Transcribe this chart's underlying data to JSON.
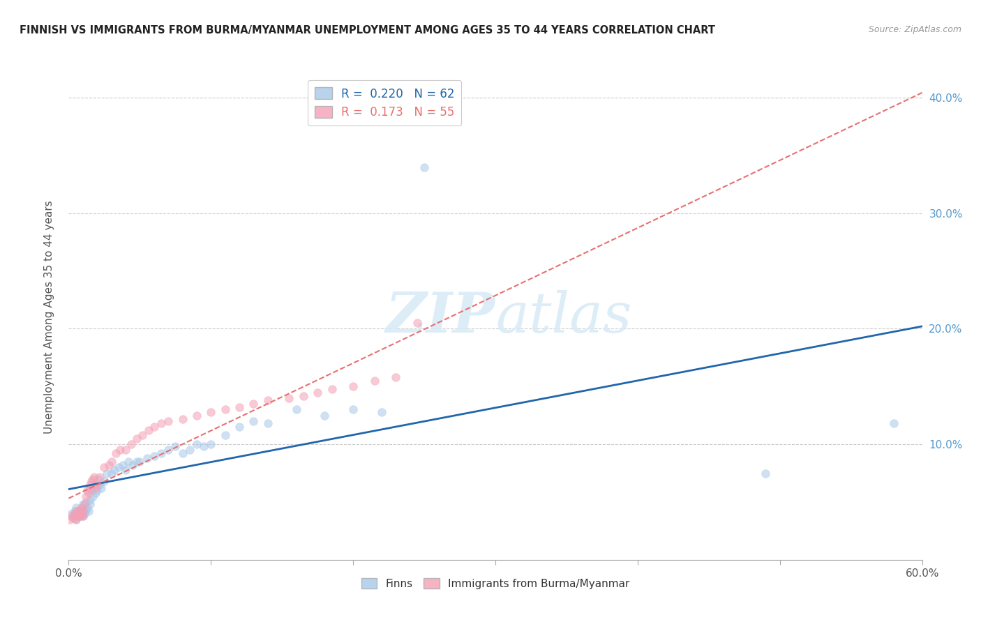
{
  "title": "FINNISH VS IMMIGRANTS FROM BURMA/MYANMAR UNEMPLOYMENT AMONG AGES 35 TO 44 YEARS CORRELATION CHART",
  "source": "Source: ZipAtlas.com",
  "ylabel": "Unemployment Among Ages 35 to 44 years",
  "xlim": [
    0.0,
    0.6
  ],
  "ylim": [
    0.0,
    0.42
  ],
  "legend_blue_R": "0.220",
  "legend_blue_N": "62",
  "legend_pink_R": "0.173",
  "legend_pink_N": "55",
  "blue_color": "#a8c8e8",
  "pink_color": "#f4a0b5",
  "trend_blue_color": "#2166ac",
  "trend_pink_color": "#e87070",
  "watermark_color": "#d8eaf6",
  "background_color": "#ffffff",
  "grid_color": "#cccccc",
  "blue_x": [
    0.002,
    0.003,
    0.004,
    0.005,
    0.005,
    0.006,
    0.007,
    0.007,
    0.008,
    0.008,
    0.009,
    0.009,
    0.01,
    0.01,
    0.01,
    0.011,
    0.012,
    0.012,
    0.013,
    0.014,
    0.015,
    0.015,
    0.016,
    0.017,
    0.018,
    0.019,
    0.02,
    0.021,
    0.022,
    0.023,
    0.025,
    0.027,
    0.03,
    0.032,
    0.035,
    0.038,
    0.04,
    0.042,
    0.045,
    0.048,
    0.05,
    0.055,
    0.06,
    0.065,
    0.07,
    0.075,
    0.08,
    0.085,
    0.09,
    0.095,
    0.1,
    0.11,
    0.12,
    0.13,
    0.14,
    0.16,
    0.18,
    0.2,
    0.22,
    0.25,
    0.49,
    0.58
  ],
  "blue_y": [
    0.04,
    0.038,
    0.042,
    0.035,
    0.045,
    0.038,
    0.04,
    0.043,
    0.038,
    0.042,
    0.04,
    0.045,
    0.038,
    0.042,
    0.048,
    0.04,
    0.043,
    0.05,
    0.045,
    0.042,
    0.048,
    0.052,
    0.06,
    0.055,
    0.065,
    0.058,
    0.06,
    0.07,
    0.065,
    0.062,
    0.068,
    0.075,
    0.075,
    0.078,
    0.08,
    0.082,
    0.078,
    0.085,
    0.082,
    0.085,
    0.085,
    0.088,
    0.09,
    0.092,
    0.095,
    0.098,
    0.092,
    0.095,
    0.1,
    0.098,
    0.1,
    0.108,
    0.115,
    0.12,
    0.118,
    0.13,
    0.125,
    0.13,
    0.128,
    0.34,
    0.075,
    0.118
  ],
  "pink_x": [
    0.001,
    0.002,
    0.003,
    0.004,
    0.005,
    0.005,
    0.006,
    0.007,
    0.007,
    0.008,
    0.008,
    0.009,
    0.009,
    0.01,
    0.01,
    0.011,
    0.012,
    0.013,
    0.014,
    0.015,
    0.015,
    0.016,
    0.017,
    0.018,
    0.019,
    0.02,
    0.022,
    0.025,
    0.028,
    0.03,
    0.033,
    0.036,
    0.04,
    0.044,
    0.048,
    0.052,
    0.056,
    0.06,
    0.065,
    0.07,
    0.08,
    0.09,
    0.1,
    0.11,
    0.12,
    0.13,
    0.14,
    0.155,
    0.165,
    0.175,
    0.185,
    0.2,
    0.215,
    0.23,
    0.245
  ],
  "pink_y": [
    0.035,
    0.038,
    0.036,
    0.04,
    0.035,
    0.042,
    0.038,
    0.04,
    0.043,
    0.038,
    0.042,
    0.04,
    0.045,
    0.038,
    0.042,
    0.048,
    0.055,
    0.06,
    0.058,
    0.062,
    0.065,
    0.068,
    0.07,
    0.072,
    0.062,
    0.065,
    0.072,
    0.08,
    0.082,
    0.085,
    0.092,
    0.095,
    0.095,
    0.1,
    0.105,
    0.108,
    0.112,
    0.115,
    0.118,
    0.12,
    0.122,
    0.125,
    0.128,
    0.13,
    0.132,
    0.135,
    0.138,
    0.14,
    0.142,
    0.145,
    0.148,
    0.15,
    0.155,
    0.158,
    0.205
  ],
  "marker_size": 70,
  "marker_alpha": 0.55,
  "marker_linewidth": 1.2
}
